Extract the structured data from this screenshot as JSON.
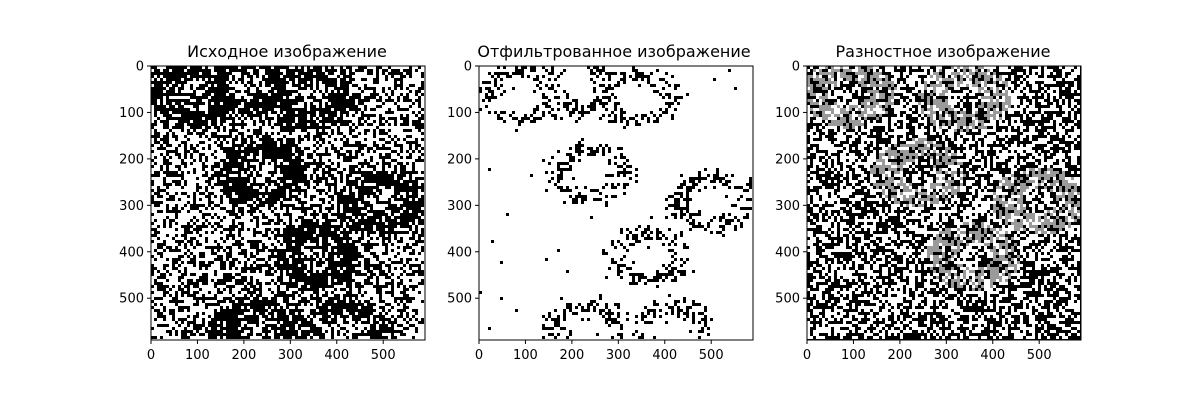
{
  "chart_data": [
    {
      "type": "heatmap",
      "title": "Исходное изображение",
      "image_size": [
        590,
        590
      ],
      "xlim": [
        0,
        590
      ],
      "ylim": [
        590,
        0
      ],
      "xticks": [
        0,
        100,
        200,
        300,
        400,
        500
      ],
      "yticks": [
        0,
        100,
        200,
        300,
        400,
        500
      ],
      "colormap": "binary",
      "content": "noisy binary image with dark ring-shaped blobs",
      "blob_centers": [
        [
          90,
          60
        ],
        [
          210,
          40
        ],
        [
          340,
          70
        ],
        [
          240,
          230
        ],
        [
          500,
          290
        ],
        [
          360,
          410
        ],
        [
          230,
          570
        ],
        [
          420,
          570
        ]
      ]
    },
    {
      "type": "heatmap",
      "title": "Отфильтрованное изображение",
      "image_size": [
        590,
        590
      ],
      "xlim": [
        0,
        590
      ],
      "ylim": [
        590,
        0
      ],
      "xticks": [
        0,
        100,
        200,
        300,
        400,
        500
      ],
      "yticks": [
        0,
        100,
        200,
        300,
        400,
        500
      ],
      "colormap": "binary",
      "content": "mostly white image with speckled ring-shaped blobs",
      "blob_centers": [
        [
          90,
          60
        ],
        [
          210,
          40
        ],
        [
          340,
          70
        ],
        [
          240,
          230
        ],
        [
          500,
          290
        ],
        [
          360,
          410
        ],
        [
          230,
          570
        ],
        [
          420,
          570
        ]
      ]
    },
    {
      "type": "heatmap",
      "title": "Разностное изображение",
      "image_size": [
        590,
        590
      ],
      "xlim": [
        0,
        590
      ],
      "ylim": [
        590,
        0
      ],
      "xticks": [
        0,
        100,
        200,
        300,
        400,
        500
      ],
      "yticks": [
        0,
        100,
        200,
        300,
        400,
        500
      ],
      "colormap": "gray",
      "content": "dark noisy image with faint gray blob regions",
      "blob_centers": [
        [
          90,
          60
        ],
        [
          340,
          70
        ],
        [
          240,
          230
        ],
        [
          500,
          290
        ],
        [
          360,
          410
        ]
      ]
    }
  ]
}
